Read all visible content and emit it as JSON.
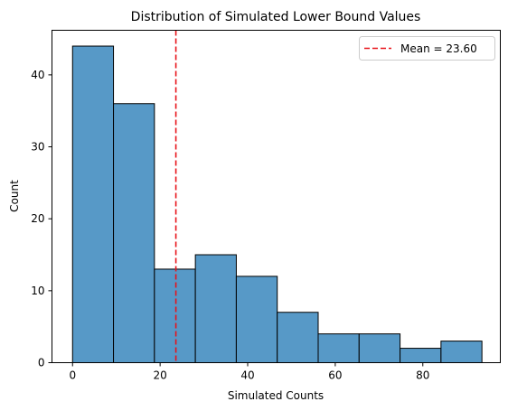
{
  "chart_data": {
    "type": "bar",
    "title": "Distribution of Simulated Lower Bound Values",
    "xlabel": "Simulated Counts",
    "ylabel": "Count",
    "xlim": [
      -4.7,
      97.7
    ],
    "ylim": [
      0,
      46.2
    ],
    "xticks": [
      0,
      20,
      40,
      60,
      80
    ],
    "yticks": [
      0,
      10,
      20,
      30,
      40
    ],
    "bins": [
      {
        "x0": 0.0,
        "x1": 9.35,
        "count": 44
      },
      {
        "x0": 9.35,
        "x1": 18.7,
        "count": 36
      },
      {
        "x0": 18.7,
        "x1": 28.05,
        "count": 13
      },
      {
        "x0": 28.05,
        "x1": 37.4,
        "count": 15
      },
      {
        "x0": 37.4,
        "x1": 46.75,
        "count": 12
      },
      {
        "x0": 46.75,
        "x1": 56.1,
        "count": 7
      },
      {
        "x0": 56.1,
        "x1": 65.45,
        "count": 4
      },
      {
        "x0": 65.45,
        "x1": 74.8,
        "count": 4
      },
      {
        "x0": 74.8,
        "x1": 84.15,
        "count": 2
      },
      {
        "x0": 84.15,
        "x1": 93.5,
        "count": 3
      }
    ],
    "bar_color": "#5799c7",
    "edge_color": "#000000",
    "mean": {
      "value": 23.6,
      "label": "Mean = 23.60",
      "color": "#e8131a",
      "style": "dashed"
    },
    "legend_position": "top-right",
    "grid": false
  }
}
